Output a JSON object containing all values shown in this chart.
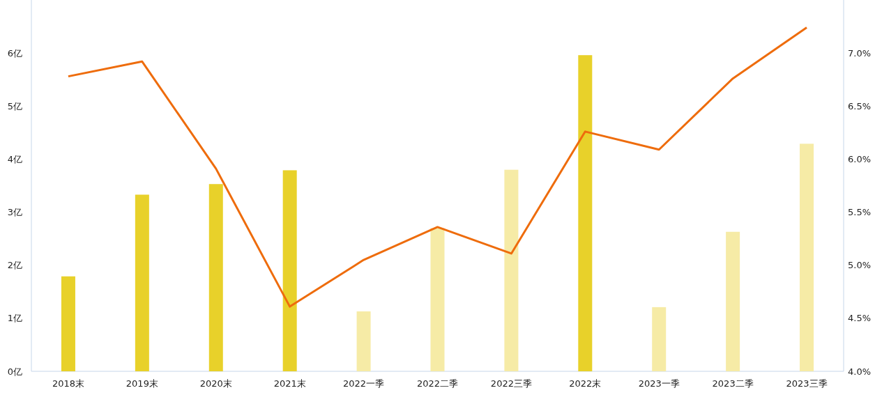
{
  "chart_data": {
    "type": "bar",
    "categories": [
      "2018末",
      "2019末",
      "2020末",
      "2021末",
      "2022一季",
      "2022二季",
      "2022三季",
      "2022末",
      "2023一季",
      "2023二季",
      "2023三季"
    ],
    "series": [
      {
        "colors": [
          "#e8d12a",
          "#e8d12a",
          "#e8d12a",
          "#e8d12a",
          "#f6eba6",
          "#f6eba6",
          "#f6eba6",
          "#e8d12a",
          "#f6eba6",
          "#f6eba6",
          "#f6eba6"
        ],
        "values": [
          1.79,
          3.33,
          3.53,
          3.79,
          1.13,
          2.7,
          3.8,
          5.96,
          1.21,
          2.63,
          4.29
        ]
      },
      {
        "type": "line",
        "axis": "y2",
        "color": "#ee6c0c",
        "values": [
          6.78,
          6.92,
          5.91,
          4.61,
          5.05,
          5.36,
          5.11,
          6.26,
          6.09,
          6.76,
          7.24
        ]
      }
    ],
    "ylim": [
      0,
      7
    ],
    "yticks": [
      {
        "value": 0,
        "label": "0亿"
      },
      {
        "value": 1,
        "label": "1亿"
      },
      {
        "value": 2,
        "label": "2亿"
      },
      {
        "value": 3,
        "label": "3亿"
      },
      {
        "value": 4,
        "label": "4亿"
      },
      {
        "value": 5,
        "label": "5亿"
      },
      {
        "value": 6,
        "label": "6亿"
      }
    ],
    "y2lim": [
      4,
      7.5
    ],
    "y2ticks": [
      {
        "value": 4,
        "label": "4.0%"
      },
      {
        "value": 4.5,
        "label": "4.5%"
      },
      {
        "value": 5,
        "label": "5.0%"
      },
      {
        "value": 5.5,
        "label": "5.5%"
      },
      {
        "value": 6,
        "label": "6.0%"
      },
      {
        "value": 6.5,
        "label": "6.5%"
      },
      {
        "value": 7,
        "label": "7.0%"
      }
    ],
    "grid": false
  }
}
